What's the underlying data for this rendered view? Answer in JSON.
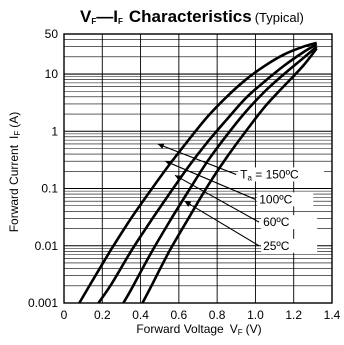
{
  "chart_data": {
    "type": "line",
    "title": {
      "v_symbol": "V",
      "v_sub": "F",
      "dash": "—",
      "i_symbol": "I",
      "i_sub": "F",
      "word": "Characteristics",
      "qualifier": "(Typical)"
    },
    "xlabel": {
      "text": "Forward Voltage",
      "symbol": "V",
      "sub": "F",
      "unit": "(V)"
    },
    "ylabel": {
      "text": "Forward Current",
      "symbol": "I",
      "sub": "F",
      "unit": "(A)"
    },
    "x_scale": "linear",
    "y_scale": "log",
    "xlim": [
      0,
      1.4
    ],
    "ylim": [
      0.001,
      50
    ],
    "x_ticks": [
      0,
      0.2,
      0.4,
      0.6,
      0.8,
      1.0,
      1.2,
      1.4
    ],
    "x_tick_labels": [
      "0",
      "0.2",
      "0.4",
      "0.6",
      "0.8",
      "1.0",
      "1.2",
      "1.4"
    ],
    "y_ticks": [
      0.001,
      0.01,
      0.1,
      1,
      10,
      50
    ],
    "y_tick_labels": [
      "0.001",
      "0.01",
      "0.1",
      "1",
      "10",
      "50"
    ],
    "grid": true,
    "series": [
      {
        "name": "Ta = 150°C",
        "x": [
          0.08,
          0.15,
          0.25,
          0.35,
          0.45,
          0.55,
          0.65,
          0.75,
          0.85,
          0.95,
          1.05,
          1.15,
          1.25,
          1.32
        ],
        "y": [
          0.001,
          0.0025,
          0.009,
          0.03,
          0.09,
          0.26,
          0.7,
          1.8,
          4.0,
          8.0,
          14,
          22,
          30,
          35
        ]
      },
      {
        "name": "100°C",
        "x": [
          0.18,
          0.25,
          0.35,
          0.45,
          0.55,
          0.65,
          0.75,
          0.85,
          0.95,
          1.05,
          1.15,
          1.25,
          1.32
        ],
        "y": [
          0.001,
          0.0022,
          0.008,
          0.026,
          0.08,
          0.24,
          0.65,
          1.6,
          3.8,
          7.5,
          14,
          24,
          33
        ]
      },
      {
        "name": "60°C",
        "x": [
          0.31,
          0.35,
          0.45,
          0.55,
          0.65,
          0.75,
          0.85,
          0.95,
          1.05,
          1.15,
          1.25,
          1.32
        ],
        "y": [
          0.001,
          0.0017,
          0.007,
          0.026,
          0.09,
          0.3,
          0.85,
          2.2,
          5.0,
          10,
          19,
          30
        ]
      },
      {
        "name": "25°C",
        "x": [
          0.41,
          0.45,
          0.55,
          0.65,
          0.75,
          0.85,
          0.95,
          1.05,
          1.15,
          1.25,
          1.32
        ],
        "y": [
          0.001,
          0.0018,
          0.008,
          0.03,
          0.11,
          0.35,
          1.0,
          2.7,
          6.2,
          14,
          28
        ]
      }
    ],
    "annotations": [
      {
        "text_prefix": "T",
        "text_sub": "a",
        "text_rest": " = 150ºC",
        "label_x": 0.92,
        "label_y": 0.15,
        "arrow_to_x": 0.49,
        "arrow_to_y": 0.6
      },
      {
        "text_prefix": "",
        "text_sub": "",
        "text_rest": "100ºC",
        "label_x": 1.02,
        "label_y": 0.055,
        "arrow_to_x": 0.53,
        "arrow_to_y": 0.3
      },
      {
        "text_prefix": "",
        "text_sub": "",
        "text_rest": "60ºC",
        "label_x": 1.04,
        "label_y": 0.022,
        "arrow_to_x": 0.58,
        "arrow_to_y": 0.17
      },
      {
        "text_prefix": "",
        "text_sub": "",
        "text_rest": "25ºC",
        "label_x": 1.04,
        "label_y": 0.0085,
        "arrow_to_x": 0.63,
        "arrow_to_y": 0.06
      }
    ]
  }
}
